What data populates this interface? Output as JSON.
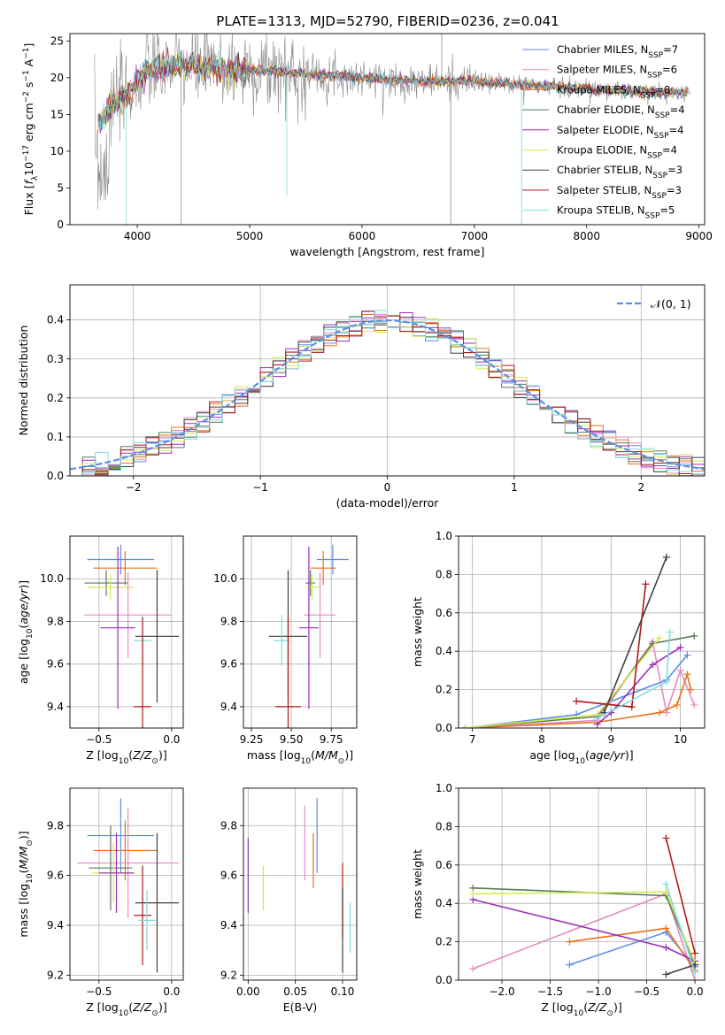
{
  "figure_title": "PLATE=1313, MJD=52790, FIBERID=0236, z=0.041",
  "colors": {
    "Chabrier MILES": "#5b8ee6",
    "Salpeter MILES": "#e58ac0",
    "Kroupa MILES": "#e8731a",
    "Chabrier ELODIE": "#5a7a5a",
    "Salpeter ELODIE": "#9a2fb8",
    "Kroupa ELODIE": "#d6ea50",
    "Chabrier STELIB": "#3f3f3f",
    "Salpeter STELIB": "#b01818",
    "Kroupa STELIB": "#7fdede",
    "data": "#8a8a8a",
    "normal": "#5b8ee6"
  },
  "chart_data": [
    {
      "id": "spectrum",
      "type": "line",
      "title": "PLATE=1313, MJD=52790, FIBERID=0236, z=0.041",
      "xlabel": "wavelength [Angstrom, rest frame]",
      "ylabel": "Flux [f_λ 10^-17 erg cm^-2 s^-1 A^-1]",
      "xlim": [
        3400,
        9050
      ],
      "ylim": [
        0,
        26
      ],
      "xticks": [
        "4000",
        "5000",
        "6000",
        "7000",
        "8000",
        "9000"
      ],
      "yticks": [
        "0",
        "5",
        "10",
        "15",
        "20",
        "25"
      ],
      "legend": {
        "location": "upper right",
        "entries": [
          {
            "label": "Chabrier MILES",
            "nssp": "7"
          },
          {
            "label": "Salpeter MILES",
            "nssp": "6"
          },
          {
            "label": "Kroupa MILES",
            "nssp": "8"
          },
          {
            "label": "Chabrier ELODIE",
            "nssp": "4"
          },
          {
            "label": "Salpeter ELODIE",
            "nssp": "4"
          },
          {
            "label": "Kroupa ELODIE",
            "nssp": "4"
          },
          {
            "label": "Chabrier STELIB",
            "nssp": "3"
          },
          {
            "label": "Salpeter STELIB",
            "nssp": "3"
          },
          {
            "label": "Kroupa STELIB",
            "nssp": "5"
          }
        ]
      },
      "continuum": {
        "x": [
          3650,
          3800,
          3950,
          4100,
          4300,
          4500,
          4800,
          5100,
          5500,
          6000,
          6500,
          7000,
          7500,
          8000,
          8500,
          8900
        ],
        "y": [
          14,
          16.5,
          18.5,
          21,
          21.5,
          21.5,
          21,
          21,
          20.5,
          20,
          19.5,
          19.5,
          19,
          18.5,
          18,
          18
        ]
      }
    },
    {
      "id": "residuals",
      "type": "line",
      "xlabel": "(data-model)/error",
      "ylabel": "Normed distribution",
      "xlim": [
        -2.5,
        2.5
      ],
      "ylim": [
        0,
        0.49
      ],
      "xticks": [
        "−2",
        "−1",
        "0",
        "1",
        "2"
      ],
      "yticks": [
        "0.0",
        "0.1",
        "0.2",
        "0.3",
        "0.4"
      ],
      "grid": true,
      "legend": {
        "location": "upper right",
        "entries": [
          "N(0,1)"
        ]
      },
      "histogram": {
        "bin_width": 0.1,
        "range": [
          -2.5,
          2.5
        ],
        "series_count": 9
      }
    },
    {
      "id": "age_vs_z",
      "type": "scatter",
      "xlabel": "Z [log10(Z/Z☉)]",
      "ylabel": "age [log10(age/yr)]",
      "xlim": [
        -0.7,
        0.08
      ],
      "ylim": [
        9.3,
        10.2
      ],
      "xticks": [
        "−0.5",
        "0.0"
      ],
      "yticks": [
        "9.4",
        "9.6",
        "9.8",
        "10.0"
      ],
      "grid": true,
      "points": [
        {
          "model": "Chabrier MILES",
          "x": -0.35,
          "xerr": 0.23,
          "y": 10.09,
          "yerr": 0.07
        },
        {
          "model": "Kroupa MILES",
          "x": -0.32,
          "xerr": 0.22,
          "y": 10.05,
          "yerr": 0.08
        },
        {
          "model": "Chabrier ELODIE",
          "x": -0.45,
          "xerr": 0.15,
          "y": 9.98,
          "yerr": 0.06
        },
        {
          "model": "Kroupa ELODIE",
          "x": -0.42,
          "xerr": 0.16,
          "y": 9.96,
          "yerr": 0.06
        },
        {
          "model": "Salpeter MILES",
          "x": -0.3,
          "xerr": 0.3,
          "y": 9.83,
          "yerr": 0.2
        },
        {
          "model": "Salpeter ELODIE",
          "x": -0.37,
          "xerr": 0.12,
          "y": 9.77,
          "yerr": 0.38
        },
        {
          "model": "Chabrier STELIB",
          "x": -0.1,
          "xerr": 0.15,
          "y": 9.73,
          "yerr": 0.31
        },
        {
          "model": "Kroupa STELIB",
          "x": -0.2,
          "xerr": 0.06,
          "y": 9.71,
          "yerr": 0.12
        },
        {
          "model": "Salpeter STELIB",
          "x": -0.2,
          "xerr": 0.06,
          "y": 9.4,
          "yerr": 0.42
        }
      ]
    },
    {
      "id": "age_vs_mass",
      "type": "scatter",
      "xlabel": "mass [log10(M/M☉)]",
      "ylabel": "",
      "xlim": [
        9.2,
        9.91
      ],
      "ylim": [
        9.3,
        10.2
      ],
      "xticks": [
        "9.25",
        "9.50",
        "9.75"
      ],
      "yticks": [
        "9.4",
        "9.6",
        "9.8",
        "10.0"
      ],
      "grid": true,
      "points": [
        {
          "model": "Chabrier MILES",
          "x": 9.76,
          "xerr": 0.1,
          "y": 10.09,
          "yerr": 0.07
        },
        {
          "model": "Kroupa MILES",
          "x": 9.7,
          "xerr": 0.08,
          "y": 10.05,
          "yerr": 0.08
        },
        {
          "model": "Chabrier ELODIE",
          "x": 9.62,
          "xerr": 0.03,
          "y": 9.98,
          "yerr": 0.06
        },
        {
          "model": "Kroupa ELODIE",
          "x": 9.63,
          "xerr": 0.04,
          "y": 9.96,
          "yerr": 0.06
        },
        {
          "model": "Salpeter MILES",
          "x": 9.68,
          "xerr": 0.1,
          "y": 9.83,
          "yerr": 0.2
        },
        {
          "model": "Salpeter ELODIE",
          "x": 9.61,
          "xerr": 0.06,
          "y": 9.77,
          "yerr": 0.38
        },
        {
          "model": "Chabrier STELIB",
          "x": 9.48,
          "xerr": 0.12,
          "y": 9.73,
          "yerr": 0.31
        },
        {
          "model": "Kroupa STELIB",
          "x": 9.44,
          "xerr": 0.05,
          "y": 9.71,
          "yerr": 0.12
        },
        {
          "model": "Salpeter STELIB",
          "x": 9.48,
          "xerr": 0.08,
          "y": 9.4,
          "yerr": 0.42
        }
      ]
    },
    {
      "id": "weights_vs_age",
      "type": "line",
      "xlabel": "age [log10(age/yr)]",
      "ylabel": "mass weight",
      "xlim": [
        6.8,
        10.35
      ],
      "ylim": [
        0,
        1.0
      ],
      "xticks": [
        "7",
        "8",
        "9",
        "10"
      ],
      "yticks": [
        "0.0",
        "0.2",
        "0.4",
        "0.6",
        "0.8",
        "1.0"
      ],
      "grid": true,
      "series": [
        {
          "model": "Chabrier MILES",
          "x": [
            6.9,
            8.5,
            9.8,
            10.1
          ],
          "y": [
            0.0,
            0.07,
            0.25,
            0.38
          ]
        },
        {
          "model": "Salpeter MILES",
          "x": [
            6.9,
            8.8,
            9.6,
            9.8,
            10.0,
            10.2
          ],
          "y": [
            0.0,
            0.04,
            0.45,
            0.08,
            0.3,
            0.12
          ]
        },
        {
          "model": "Kroupa MILES",
          "x": [
            6.9,
            8.8,
            9.7,
            9.95,
            10.1,
            10.15
          ],
          "y": [
            0.0,
            0.03,
            0.08,
            0.12,
            0.28,
            0.2
          ]
        },
        {
          "model": "Chabrier ELODIE",
          "x": [
            6.9,
            8.8,
            9.6,
            10.2
          ],
          "y": [
            0.0,
            0.06,
            0.44,
            0.48
          ]
        },
        {
          "model": "Salpeter ELODIE",
          "x": [
            8.8,
            9.0,
            9.6,
            10.0
          ],
          "y": [
            0.02,
            0.08,
            0.33,
            0.42
          ]
        },
        {
          "model": "Kroupa ELODIE",
          "x": [
            6.9,
            8.8,
            9.7
          ],
          "y": [
            0.0,
            0.07,
            0.47
          ]
        },
        {
          "model": "Chabrier STELIB",
          "x": [
            8.9,
            9.8
          ],
          "y": [
            0.08,
            0.89
          ]
        },
        {
          "model": "Salpeter STELIB",
          "x": [
            8.5,
            9.3,
            9.5
          ],
          "y": [
            0.14,
            0.11,
            0.75
          ]
        },
        {
          "model": "Kroupa STELIB",
          "x": [
            8.8,
            9.8,
            9.85
          ],
          "y": [
            0.05,
            0.24,
            0.5
          ]
        }
      ]
    },
    {
      "id": "mass_vs_z",
      "type": "scatter",
      "xlabel": "Z [log10(Z/Z☉)]",
      "ylabel": "mass [log10(M/M☉)]",
      "xlim": [
        -0.7,
        0.08
      ],
      "ylim": [
        9.18,
        9.95
      ],
      "xticks": [
        "−0.5",
        "0.0"
      ],
      "yticks": [
        "9.2",
        "9.4",
        "9.6",
        "9.8"
      ],
      "grid": true,
      "points": [
        {
          "model": "Chabrier MILES",
          "x": -0.35,
          "xerr": 0.23,
          "y": 9.76,
          "yerr": 0.15
        },
        {
          "model": "Kroupa MILES",
          "x": -0.32,
          "xerr": 0.22,
          "y": 9.7,
          "yerr": 0.12
        },
        {
          "model": "Salpeter MILES",
          "x": -0.3,
          "xerr": 0.35,
          "y": 9.65,
          "yerr": 0.22
        },
        {
          "model": "Chabrier ELODIE",
          "x": -0.42,
          "xerr": 0.15,
          "y": 9.63,
          "yerr": 0.17
        },
        {
          "model": "Kroupa ELODIE",
          "x": -0.4,
          "xerr": 0.15,
          "y": 9.61,
          "yerr": 0.12
        },
        {
          "model": "Salpeter ELODIE",
          "x": -0.38,
          "xerr": 0.12,
          "y": 9.61,
          "yerr": 0.16
        },
        {
          "model": "Chabrier STELIB",
          "x": -0.1,
          "xerr": 0.15,
          "y": 9.49,
          "yerr": 0.28
        },
        {
          "model": "Salpeter STELIB",
          "x": -0.2,
          "xerr": 0.06,
          "y": 9.44,
          "yerr": 0.2
        },
        {
          "model": "Kroupa STELIB",
          "x": -0.17,
          "xerr": 0.06,
          "y": 9.42,
          "yerr": 0.12
        }
      ]
    },
    {
      "id": "mass_vs_ebv",
      "type": "scatter",
      "xlabel": "E(B-V)",
      "ylabel": "",
      "xlim": [
        -0.005,
        0.115
      ],
      "ylim": [
        9.18,
        9.95
      ],
      "xticks": [
        "0.00",
        "0.05",
        "0.10"
      ],
      "yticks": [
        "9.2",
        "9.4",
        "9.6",
        "9.8"
      ],
      "grid": true,
      "points": [
        {
          "model": "Salpeter ELODIE",
          "x": 0.0,
          "y": 9.6,
          "yerr": 0.15
        },
        {
          "model": "Kroupa ELODIE",
          "x": 0.016,
          "y": 9.55,
          "yerr": 0.09
        },
        {
          "model": "Salpeter MILES",
          "x": 0.06,
          "y": 9.73,
          "yerr": 0.15
        },
        {
          "model": "Kroupa MILES",
          "x": 0.069,
          "y": 9.66,
          "yerr": 0.11
        },
        {
          "model": "Chabrier MILES",
          "x": 0.073,
          "y": 9.76,
          "yerr": 0.15
        },
        {
          "model": "Salpeter STELIB",
          "x": 0.1,
          "y": 9.5,
          "yerr": 0.15
        },
        {
          "model": "Chabrier STELIB",
          "x": 0.1,
          "y": 9.38,
          "yerr": 0.17
        },
        {
          "model": "Kroupa STELIB",
          "x": 0.108,
          "y": 9.39,
          "yerr": 0.1
        }
      ]
    },
    {
      "id": "weights_vs_z",
      "type": "line",
      "xlabel": "Z [log10(Z/Z☉)]",
      "ylabel": "mass weight",
      "xlim": [
        -2.45,
        0.1
      ],
      "ylim": [
        0,
        1.0
      ],
      "xticks": [
        "−2.0",
        "−1.5",
        "−1.0",
        "−0.5",
        "0.0"
      ],
      "yticks": [
        "0.0",
        "0.2",
        "0.4",
        "0.6",
        "0.8",
        "1.0"
      ],
      "grid": true,
      "series": [
        {
          "model": "Chabrier MILES",
          "x": [
            -1.3,
            -0.3,
            0.0
          ],
          "y": [
            0.08,
            0.25,
            0.07
          ]
        },
        {
          "model": "Salpeter MILES",
          "x": [
            -2.3,
            -0.3,
            0.0
          ],
          "y": [
            0.06,
            0.45,
            0.0
          ]
        },
        {
          "model": "Kroupa MILES",
          "x": [
            -1.3,
            -0.3,
            0.0
          ],
          "y": [
            0.2,
            0.27,
            0.05
          ]
        },
        {
          "model": "Chabrier ELODIE",
          "x": [
            -2.3,
            -0.3,
            0.0
          ],
          "y": [
            0.48,
            0.44,
            0.08
          ]
        },
        {
          "model": "Salpeter ELODIE",
          "x": [
            -2.3,
            -0.3,
            0.0
          ],
          "y": [
            0.42,
            0.17,
            0.1
          ]
        },
        {
          "model": "Kroupa ELODIE",
          "x": [
            -2.3,
            -0.3,
            0.0
          ],
          "y": [
            0.45,
            0.46,
            0.09
          ]
        },
        {
          "model": "Chabrier STELIB",
          "x": [
            -0.3,
            0.0
          ],
          "y": [
            0.03,
            0.08
          ]
        },
        {
          "model": "Salpeter STELIB",
          "x": [
            -0.3,
            0.0
          ],
          "y": [
            0.74,
            0.14
          ]
        },
        {
          "model": "Kroupa STELIB",
          "x": [
            -0.3,
            0.0
          ],
          "y": [
            0.5,
            0.04
          ]
        }
      ]
    }
  ]
}
